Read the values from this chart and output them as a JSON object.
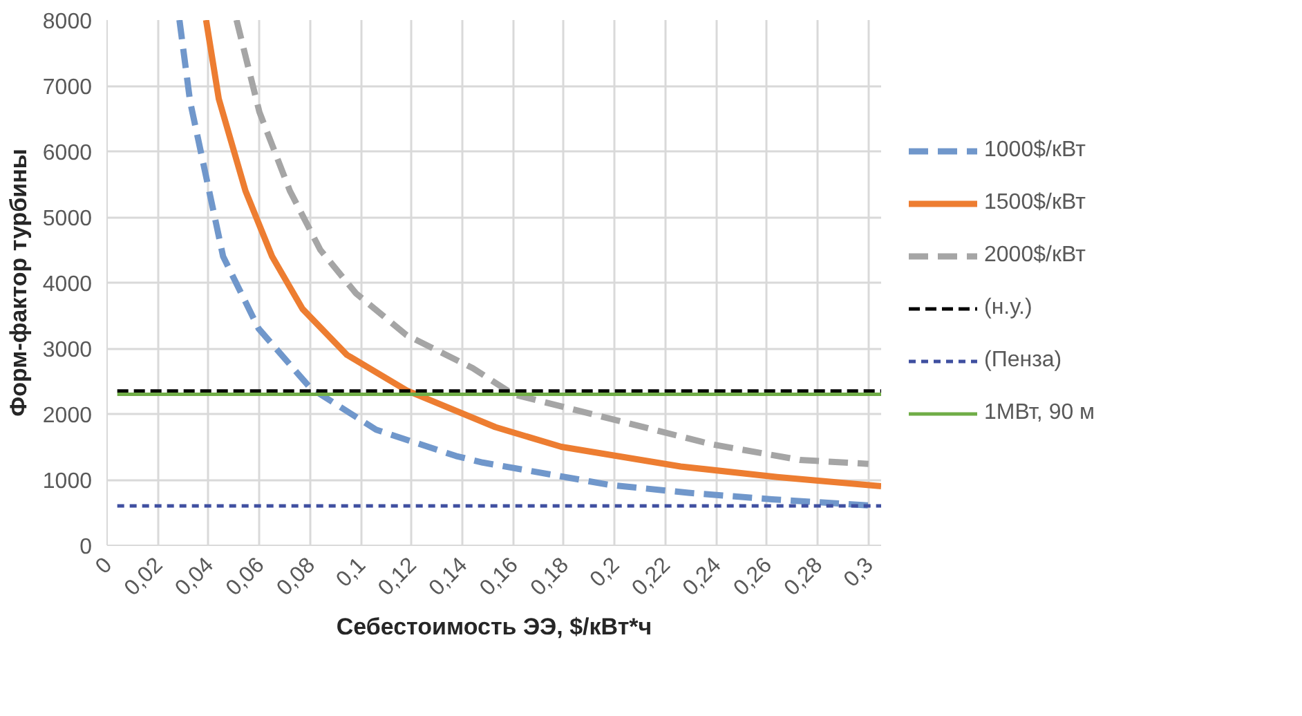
{
  "chart_data": {
    "type": "line",
    "xlabel": "Себестоимость ЭЭ, $/кВт*ч",
    "ylabel": "Форм-фактор турбины",
    "xlim": [
      0,
      0.305
    ],
    "ylim": [
      0,
      8000
    ],
    "xticks": [
      {
        "value": 0,
        "label": "0"
      },
      {
        "value": 0.02,
        "label": "0,02"
      },
      {
        "value": 0.04,
        "label": "0,04"
      },
      {
        "value": 0.06,
        "label": "0,06"
      },
      {
        "value": 0.08,
        "label": "0,08"
      },
      {
        "value": 0.1,
        "label": "0,1"
      },
      {
        "value": 0.12,
        "label": "0,12"
      },
      {
        "value": 0.14,
        "label": "0,14"
      },
      {
        "value": 0.16,
        "label": "0,16"
      },
      {
        "value": 0.18,
        "label": "0,18"
      },
      {
        "value": 0.2,
        "label": "0,2"
      },
      {
        "value": 0.22,
        "label": "0,22"
      },
      {
        "value": 0.24,
        "label": "0,24"
      },
      {
        "value": 0.26,
        "label": "0,26"
      },
      {
        "value": 0.28,
        "label": "0,28"
      },
      {
        "value": 0.3,
        "label": "0,3"
      }
    ],
    "yticks": [
      0,
      1000,
      2000,
      3000,
      4000,
      5000,
      6000,
      7000,
      8000
    ],
    "grid": true,
    "legend": "right",
    "marker": "none",
    "series": [
      {
        "name": "1000$/кВт",
        "color": "#7097cb",
        "line_style": "dashed",
        "x": [
          0.0285,
          0.0327,
          0.0457,
          0.0597,
          0.08,
          0.106,
          0.1375,
          0.148,
          0.198,
          0.229,
          0.262,
          0.303
        ],
        "values": [
          8000,
          6760,
          4400,
          3300,
          2400,
          1760,
          1360,
          1260,
          920,
          800,
          700,
          600
        ]
      },
      {
        "name": "1500$/кВт",
        "color": "#ed7d31",
        "line_style": "solid",
        "x": [
          0.039,
          0.044,
          0.0545,
          0.065,
          0.077,
          0.0945,
          0.118,
          0.153,
          0.179,
          0.226,
          0.264,
          0.305
        ],
        "values": [
          8000,
          6800,
          5400,
          4400,
          3600,
          2900,
          2360,
          1800,
          1500,
          1200,
          1040,
          900
        ]
      },
      {
        "name": "2000$/кВт",
        "color": "#a5a5a5",
        "line_style": "dashed",
        "x": [
          0.051,
          0.06,
          0.072,
          0.084,
          0.098,
          0.118,
          0.144,
          0.16,
          0.195,
          0.238,
          0.273,
          0.3
        ],
        "values": [
          8000,
          6600,
          5400,
          4500,
          3840,
          3200,
          2700,
          2300,
          1960,
          1540,
          1300,
          1240
        ]
      },
      {
        "name": "(н.у.)",
        "color": "#000000",
        "line_style": "dashed",
        "x": [
          0.004,
          0.305
        ],
        "values": [
          2350,
          2350
        ]
      },
      {
        "name": "(Пенза)",
        "color": "#3f4fa0",
        "line_style": "dotted",
        "x": [
          0.004,
          0.305
        ],
        "values": [
          600,
          600
        ]
      },
      {
        "name": "1МВт, 90 м",
        "color": "#70ad47",
        "line_style": "solid",
        "x": [
          0.004,
          0.305
        ],
        "values": [
          2300,
          2300
        ]
      }
    ]
  }
}
